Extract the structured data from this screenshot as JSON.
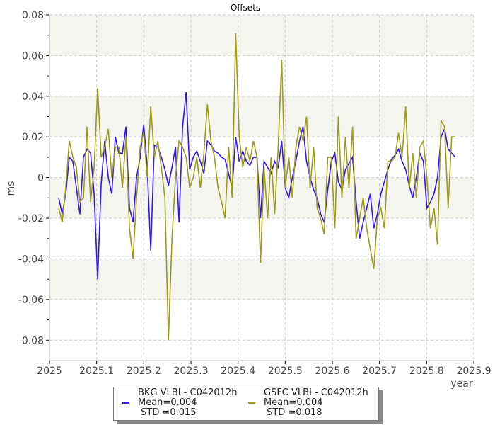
{
  "chart_data": {
    "type": "line",
    "title": "Offsets",
    "xlabel": "year",
    "ylabel": "ms",
    "xlim": [
      2025,
      2025.9
    ],
    "ylim": [
      -0.09,
      0.08
    ],
    "grid": true,
    "legend_position": "bottom",
    "xticks": [
      "2025",
      "2025.1",
      "2025.2",
      "2025.3",
      "2025.4",
      "2025.5",
      "2025.6",
      "2025.7",
      "2025.8",
      "2025.9"
    ],
    "yticks": [
      "0.08",
      "0.06",
      "0.04",
      "0.02",
      "0",
      "-0.02",
      "-0.04",
      "-0.06",
      "-0.08"
    ],
    "x_start": 2025.0195,
    "x_step": 0.00751,
    "series": [
      {
        "name": "BKG VLBI - C042012h",
        "mean": "Mean=0.004",
        "std": " STD =0.015",
        "color": "#3516ee",
        "values": [
          -0.01,
          -0.018,
          -0.008,
          0.01,
          0.008,
          -0.005,
          -0.018,
          0.01,
          0.014,
          0.012,
          -0.008,
          -0.05,
          -0.003,
          0.018,
          0.0,
          -0.008,
          0.02,
          0.012,
          0.012,
          0.025,
          -0.015,
          -0.022,
          0.0,
          0.01,
          0.026,
          0.005,
          -0.036,
          0.016,
          0.015,
          0.01,
          0.004,
          -0.004,
          0.005,
          0.015,
          -0.022,
          0.025,
          0.042,
          0.004,
          0.01,
          0.013,
          0.008,
          0.002,
          0.018,
          0.016,
          0.013,
          0.012,
          0.01,
          0.009,
          0.002,
          -0.005,
          0.02,
          0.008,
          0.013,
          0.008,
          0.006,
          0.01,
          0.01,
          -0.02,
          0.008,
          0.005,
          0.002,
          0.008,
          0.005,
          0.018,
          -0.005,
          -0.01,
          0.0,
          0.008,
          0.018,
          0.025,
          0.008,
          0.0,
          -0.006,
          -0.01,
          -0.018,
          -0.022,
          -0.006,
          0.008,
          0.012,
          -0.002,
          -0.006,
          0.004,
          0.007,
          0.01,
          -0.012,
          -0.03,
          -0.022,
          -0.015,
          -0.008,
          -0.025,
          -0.018,
          -0.008,
          -0.002,
          0.004,
          0.009,
          0.011,
          0.014,
          0.008,
          0.004,
          -0.004,
          -0.01,
          0.0,
          0.012,
          0.008,
          -0.015,
          -0.012,
          -0.008,
          0.0,
          0.02,
          0.024,
          0.014,
          0.012,
          0.01
        ]
      },
      {
        "name": "GSFC VLBI - C042012h",
        "mean": "Mean=0.004",
        "std": " STD =0.018",
        "color": "#9b9b1c",
        "values": [
          -0.015,
          -0.022,
          -0.005,
          0.018,
          0.01,
          0.005,
          -0.012,
          -0.01,
          0.025,
          -0.012,
          0.005,
          0.044,
          0.01,
          0.015,
          0.024,
          0.0,
          0.015,
          0.015,
          -0.005,
          0.02,
          -0.025,
          -0.04,
          -0.01,
          0.015,
          0.022,
          0.0,
          0.035,
          0.01,
          0.018,
          0.005,
          -0.01,
          -0.08,
          -0.03,
          0.0,
          0.018,
          0.015,
          0.01,
          -0.005,
          0.0,
          0.01,
          -0.005,
          0.012,
          0.036,
          0.018,
          0.01,
          -0.005,
          -0.012,
          -0.02,
          0.015,
          -0.01,
          0.071,
          0.02,
          0.005,
          0.015,
          0.008,
          0.018,
          0.01,
          -0.042,
          0.005,
          -0.02,
          0.01,
          -0.018,
          0.015,
          0.058,
          -0.005,
          0.01,
          -0.01,
          0.015,
          0.025,
          0.018,
          0.03,
          -0.005,
          0.015,
          -0.015,
          -0.02,
          -0.028,
          0.01,
          0.01,
          -0.025,
          0.03,
          -0.01,
          0.02,
          -0.005,
          0.025,
          -0.03,
          -0.02,
          -0.01,
          -0.025,
          -0.035,
          -0.045,
          -0.02,
          -0.015,
          -0.025,
          0.008,
          0.008,
          0.01,
          0.022,
          0.01,
          0.035,
          -0.005,
          0.012,
          -0.01,
          0.015,
          0.018,
          0.0,
          -0.025,
          -0.015,
          -0.033,
          0.028,
          0.025,
          -0.015,
          0.02,
          0.02
        ]
      }
    ]
  }
}
